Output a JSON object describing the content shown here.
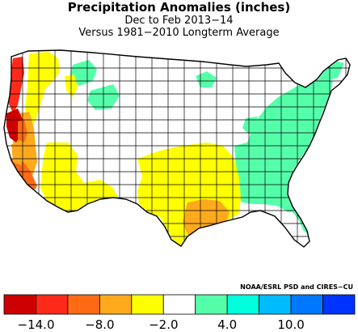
{
  "title": "Precipitation Anomalies (inches)",
  "subtitle_period": "Dec to Feb 2013−14",
  "subtitle_baseline": "Versus 1981−2010 Longterm Average",
  "credit": "NOAA/ESRL PSD and CIRES−CU",
  "legend": {
    "colors": [
      "#cc0000",
      "#ff2a1a",
      "#ff6a14",
      "#ffaa1c",
      "#ffff00",
      "#ffffff",
      "#55ffaa",
      "#00ffdd",
      "#00bbff",
      "#0077ff",
      "#0033ff"
    ],
    "tick_labels": [
      "−14.0",
      "−8.0",
      "−2.0",
      "4.0",
      "10.0"
    ]
  }
}
